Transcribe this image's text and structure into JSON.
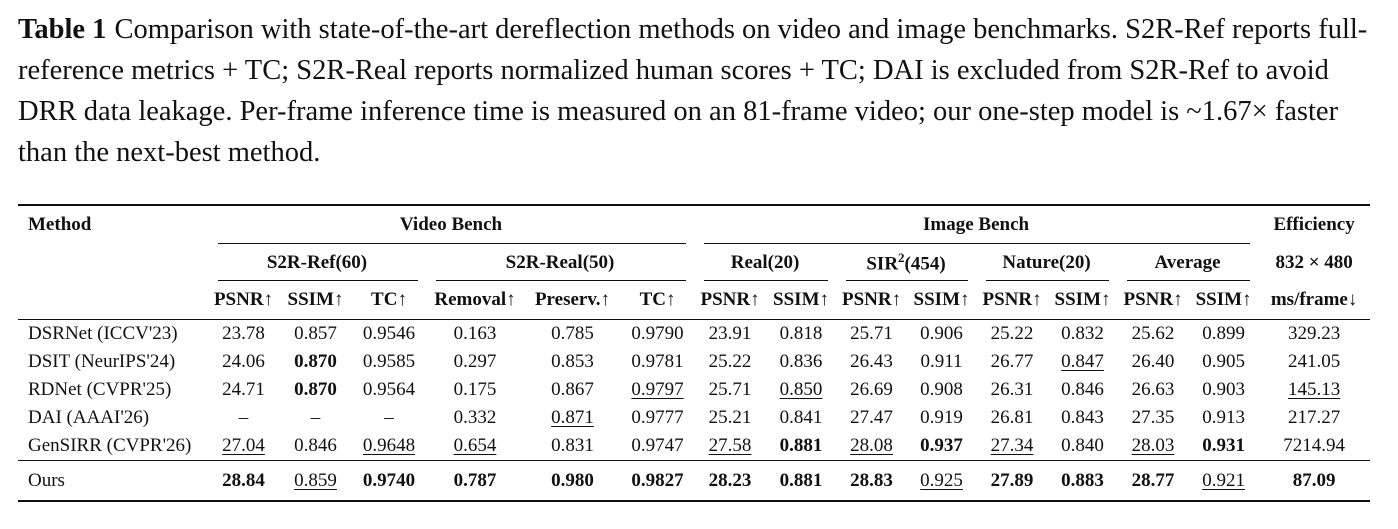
{
  "caption": {
    "label": "Table 1",
    "text": "Comparison with state-of-the-art dereflection methods on video and image benchmarks. S2R-Ref reports full-reference metrics + TC; S2R-Real reports normalized human scores + TC; DAI is excluded from S2R-Ref to avoid DRR data leakage. Per-frame inference time is measured on an 81-frame video; our one-step model is ~1.67× faster than the next-best method."
  },
  "table": {
    "header": {
      "method": "Method",
      "groups": [
        {
          "label": "Video Bench",
          "span": 6
        },
        {
          "label": "Image Bench",
          "span": 8
        },
        {
          "label": "Efficiency",
          "span": 1
        }
      ],
      "subgroups": [
        {
          "label": "S2R-Ref(60)",
          "span": 3
        },
        {
          "label": "S2R-Real(50)",
          "span": 3
        },
        {
          "label": "Real(20)",
          "span": 2
        },
        {
          "label": "SIR",
          "sup": "2",
          "suffix": "(454)",
          "span": 2
        },
        {
          "label": "Nature(20)",
          "span": 2
        },
        {
          "label": "Average",
          "span": 2
        },
        {
          "label": "832 × 480",
          "span": 1
        }
      ],
      "metrics": [
        "PSNR↑",
        "SSIM↑",
        "TC↑",
        "Removal↑",
        "Preserv.↑",
        "TC↑",
        "PSNR↑",
        "SSIM↑",
        "PSNR↑",
        "SSIM↑",
        "PSNR↑",
        "SSIM↑",
        "PSNR↑",
        "SSIM↑",
        "ms/frame↓"
      ]
    },
    "rows": [
      [
        "DSRNet (ICCV'23)",
        "23.78",
        "0.857",
        "0.9546",
        "0.163",
        "0.785",
        "0.9790",
        "23.91",
        "0.818",
        "25.71",
        "0.906",
        "25.22",
        "0.832",
        "25.62",
        "0.899",
        "329.23"
      ],
      [
        "DSIT (NeurIPS'24)",
        "24.06",
        "0.870",
        "0.9585",
        "0.297",
        "0.853",
        "0.9781",
        "25.22",
        "0.836",
        "26.43",
        "0.911",
        "26.77",
        "0.847",
        "26.40",
        "0.905",
        "241.05"
      ],
      [
        "RDNet (CVPR'25)",
        "24.71",
        "0.870",
        "0.9564",
        "0.175",
        "0.867",
        "0.9797",
        "25.71",
        "0.850",
        "26.69",
        "0.908",
        "26.31",
        "0.846",
        "26.63",
        "0.903",
        "145.13"
      ],
      [
        "DAI (AAAI'26)",
        "–",
        "–",
        "–",
        "0.332",
        "0.871",
        "0.9777",
        "25.21",
        "0.841",
        "27.47",
        "0.919",
        "26.81",
        "0.843",
        "27.35",
        "0.913",
        "217.27"
      ],
      [
        "GenSIRR (CVPR'26)",
        "27.04",
        "0.846",
        "0.9648",
        "0.654",
        "0.831",
        "0.9747",
        "27.58",
        "0.881",
        "28.08",
        "0.937",
        "27.34",
        "0.840",
        "28.03",
        "0.931",
        "7214.94"
      ],
      [
        "Ours",
        "28.84",
        "0.859",
        "0.9740",
        "0.787",
        "0.980",
        "0.9827",
        "28.23",
        "0.881",
        "28.83",
        "0.925",
        "27.89",
        "0.883",
        "28.77",
        "0.921",
        "87.09"
      ]
    ],
    "bold": [
      [
        1,
        2
      ],
      [
        2,
        2
      ],
      [
        4,
        8
      ],
      [
        4,
        10
      ],
      [
        4,
        14
      ],
      [
        5,
        1
      ],
      [
        5,
        3
      ],
      [
        5,
        4
      ],
      [
        5,
        5
      ],
      [
        5,
        6
      ],
      [
        5,
        7
      ],
      [
        5,
        8
      ],
      [
        5,
        9
      ],
      [
        5,
        11
      ],
      [
        5,
        12
      ],
      [
        5,
        13
      ],
      [
        5,
        15
      ]
    ],
    "underline": [
      [
        1,
        12
      ],
      [
        2,
        6
      ],
      [
        2,
        8
      ],
      [
        2,
        15
      ],
      [
        3,
        5
      ],
      [
        4,
        1
      ],
      [
        4,
        3
      ],
      [
        4,
        4
      ],
      [
        4,
        7
      ],
      [
        4,
        9
      ],
      [
        4,
        11
      ],
      [
        4,
        13
      ],
      [
        5,
        2
      ],
      [
        5,
        10
      ],
      [
        5,
        14
      ]
    ]
  }
}
